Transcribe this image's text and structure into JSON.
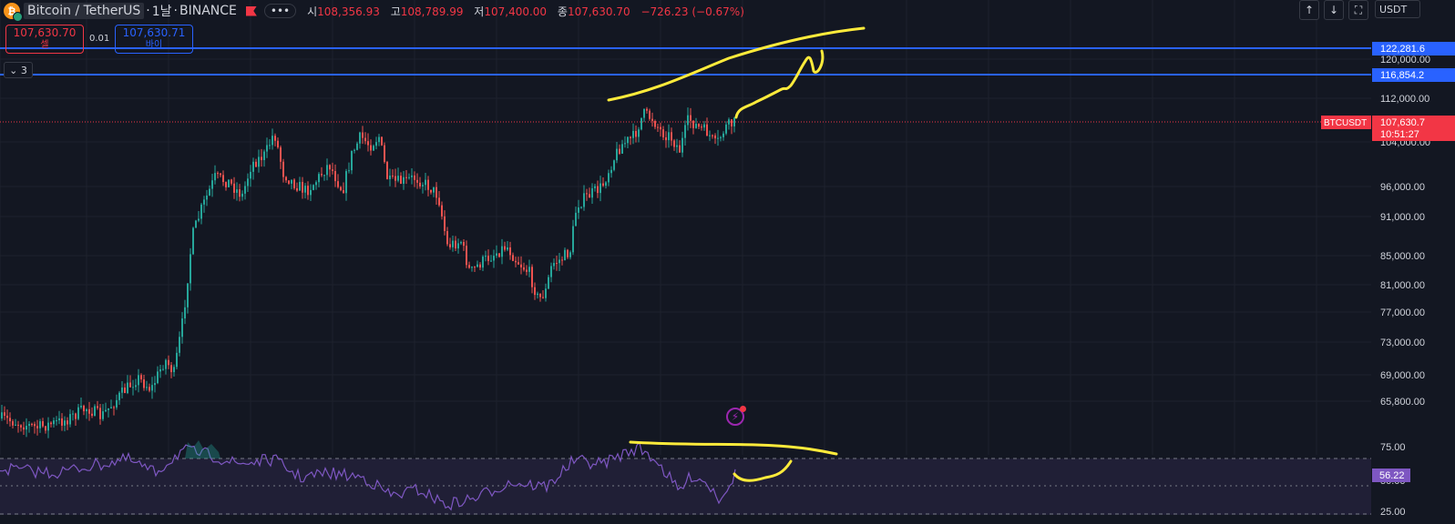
{
  "header": {
    "symbol_name": "Bitcoin / TetherUS",
    "interval": "1날",
    "exchange": "BINANCE",
    "more_label": "•••",
    "ohlc": [
      {
        "label": "시",
        "value": "108,356.93"
      },
      {
        "label": "고",
        "value": "108,789.99"
      },
      {
        "label": "저",
        "value": "107,400.00"
      },
      {
        "label": "종",
        "value": "107,630.70"
      }
    ],
    "change": "−726.23 (−0.67%)"
  },
  "trade": {
    "sell_price": "107,630.70",
    "sell_label": "셀",
    "spread": "0.01",
    "buy_price": "107,630.71",
    "buy_label": "바이"
  },
  "indicator_collapse": {
    "label": "3"
  },
  "toolbar": {
    "up_icon": "arrow-up-icon",
    "down_icon": "arrow-down-icon",
    "fullscreen_icon": "fullscreen-icon",
    "currency": "USDT"
  },
  "price_axis": {
    "labels": [
      "120,000.00",
      "112,000.00",
      "104,000.00",
      "96,000.00",
      "91,000.00",
      "85,000.00",
      "81,000.00",
      "77,000.00",
      "73,000.00",
      "69,000.00",
      "65,800.00"
    ],
    "h_line_1": "122,281.6",
    "h_line_2": "116,854.2",
    "symbol_tag": "BTCUSDT",
    "last_price": "107,630.7",
    "countdown": "10:51:27"
  },
  "rsi_axis": {
    "labels": [
      "75.00",
      "50.00",
      "25.00"
    ],
    "current": "56.22"
  },
  "colors": {
    "background": "#131722",
    "up": "#26a69a",
    "down": "#ef5350",
    "hline": "#2962ff",
    "rsi": "#7e57c2",
    "annotation": "#ffeb3b",
    "last_price": "#f23645"
  }
}
